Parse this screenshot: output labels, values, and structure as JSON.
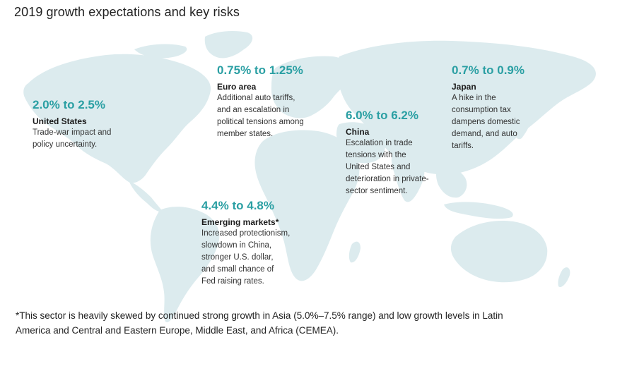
{
  "title": "2019 growth expectations and key risks",
  "colors": {
    "map_land": "#dcebee",
    "accent": "#2a9fa3"
  },
  "regions": {
    "us": {
      "range": "2.0% to 2.5%",
      "name": "United States",
      "desc": [
        "Trade-war impact and",
        "policy uncertainty."
      ]
    },
    "euro": {
      "range": "0.75% to 1.25%",
      "name": "Euro area",
      "desc": [
        "Additional auto tariffs,",
        "and an escalation in",
        "political tensions among",
        "member states."
      ]
    },
    "china": {
      "range": "6.0% to 6.2%",
      "name": "China",
      "desc": [
        "Escalation in trade",
        "tensions with the",
        "United States and",
        "deterioration in private-",
        "sector sentiment."
      ]
    },
    "japan": {
      "range": "0.7% to 0.9%",
      "name": "Japan",
      "desc": [
        "A hike in the",
        "consumption tax",
        "dampens domestic",
        "demand, and auto",
        "tariffs."
      ]
    },
    "em": {
      "range": "4.4% to 4.8%",
      "name": "Emerging markets*",
      "desc": [
        "Increased protectionism,",
        "slowdown in China,",
        "stronger U.S. dollar,",
        "and small chance of",
        "Fed raising rates."
      ]
    }
  },
  "footnote": [
    "*This sector is heavily skewed by continued strong growth in Asia (5.0%–7.5% range) and low growth levels in Latin",
    "America and Central and Eastern Europe, Middle East, and Africa (CEMEA)."
  ]
}
